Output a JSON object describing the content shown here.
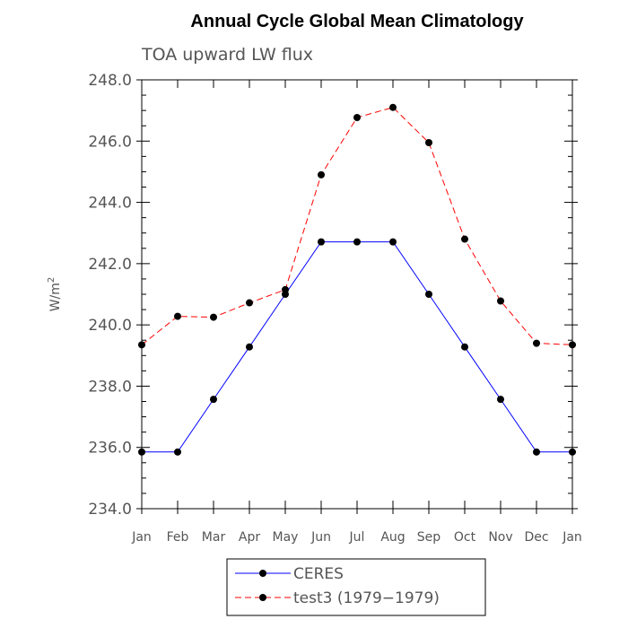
{
  "chart_data": {
    "type": "line",
    "title": "Annual Cycle Global Mean Climatology",
    "subtitle": "TOA upward LW flux",
    "xlabel": "",
    "ylabel_base": "W/m",
    "ylabel_sup": "2",
    "categories": [
      "Jan",
      "Feb",
      "Mar",
      "Apr",
      "May",
      "Jun",
      "Jul",
      "Aug",
      "Sep",
      "Oct",
      "Nov",
      "Dec",
      "Jan"
    ],
    "ylim": [
      234.0,
      248.0
    ],
    "yticks": [
      "234.0",
      "236.0",
      "238.0",
      "240.0",
      "242.0",
      "244.0",
      "246.0",
      "248.0"
    ],
    "grid": false,
    "legend_position": "bottom-center",
    "series": [
      {
        "name": "CERES",
        "color": "#0000ff",
        "dash": "solid",
        "marker": "filled-circle",
        "values": [
          235.85,
          235.85,
          237.57,
          239.28,
          241.0,
          242.71,
          242.71,
          242.71,
          241.0,
          239.28,
          237.57,
          235.85,
          235.85
        ]
      },
      {
        "name": "test3 (1979−1979)",
        "color": "#ff0000",
        "dash": "dashed",
        "marker": "filled-circle",
        "values": [
          239.35,
          240.28,
          240.25,
          240.72,
          241.15,
          244.9,
          246.77,
          247.1,
          245.95,
          242.8,
          240.78,
          239.4,
          239.35
        ]
      }
    ]
  }
}
